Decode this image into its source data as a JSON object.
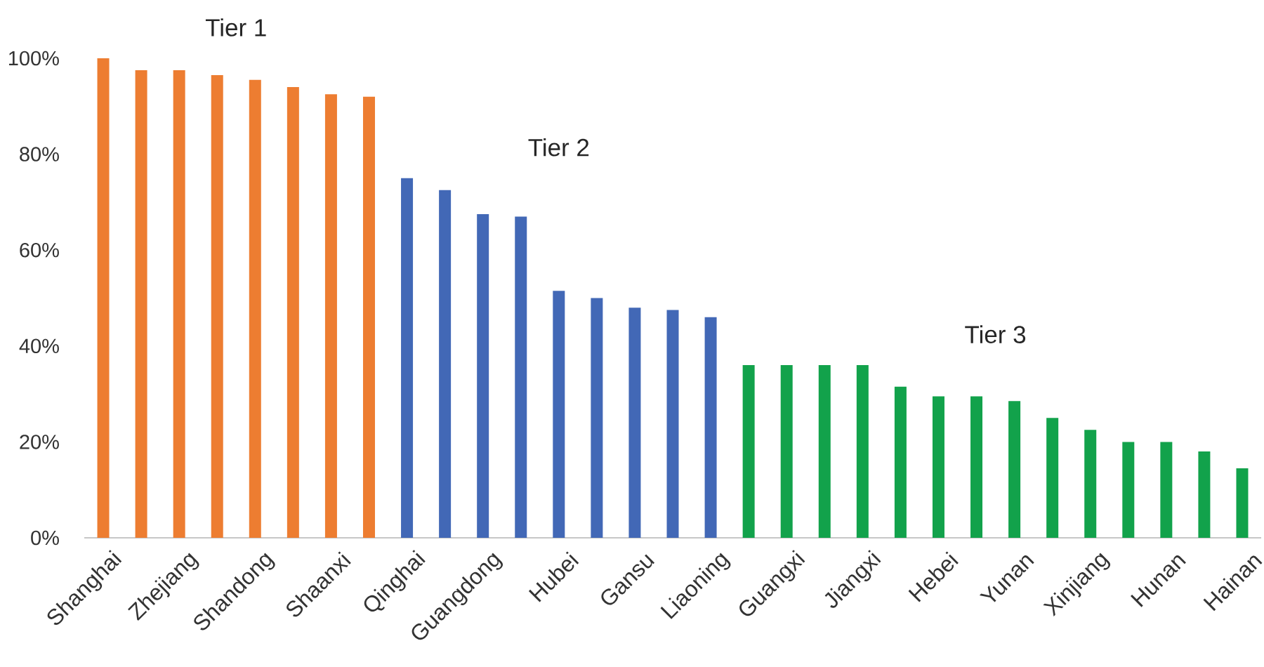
{
  "chart_data": {
    "type": "bar",
    "categories": [
      "Shanghai",
      null,
      "Zhejiang",
      null,
      "Shandong",
      null,
      "Shaanxi",
      null,
      "Qinghai",
      null,
      "Guangdong",
      null,
      "Hubei",
      null,
      "Gansu",
      null,
      "Liaoning",
      null,
      "Guangxi",
      null,
      "Jiangxi",
      null,
      "Hebei",
      null,
      "Yunan",
      null,
      "Xinjiang",
      null,
      "Hunan",
      null,
      "Hainan"
    ],
    "series": [
      {
        "name": "Tier 1",
        "color": "#ed7d31",
        "values": [
          100,
          97.5,
          97.5,
          96.5,
          95.5,
          94,
          92.5,
          92,
          null,
          null,
          null,
          null,
          null,
          null,
          null,
          null,
          null,
          null,
          null,
          null,
          null,
          null,
          null,
          null,
          null,
          null,
          null,
          null,
          null,
          null,
          null
        ]
      },
      {
        "name": "Tier 2",
        "color": "#4268b6",
        "values": [
          null,
          null,
          null,
          null,
          null,
          null,
          null,
          null,
          75,
          72.5,
          67.5,
          67,
          51.5,
          50,
          48,
          47.5,
          46,
          null,
          null,
          null,
          null,
          null,
          null,
          null,
          null,
          null,
          null,
          null,
          null,
          null,
          null
        ]
      },
      {
        "name": "Tier 3",
        "color": "#12a24b",
        "values": [
          null,
          null,
          null,
          null,
          null,
          null,
          null,
          null,
          null,
          null,
          null,
          null,
          null,
          null,
          null,
          null,
          null,
          36,
          36,
          36,
          36,
          31.5,
          29.5,
          29.5,
          28.5,
          25,
          22.5,
          20,
          20,
          18,
          14.5
        ]
      }
    ],
    "ylim": [
      0,
      100
    ],
    "yticks": [
      {
        "value": 0,
        "label": "0%"
      },
      {
        "value": 20,
        "label": "20%"
      },
      {
        "value": 40,
        "label": "40%"
      },
      {
        "value": 60,
        "label": "60%"
      },
      {
        "value": 80,
        "label": "80%"
      },
      {
        "value": 100,
        "label": "100%"
      }
    ]
  }
}
